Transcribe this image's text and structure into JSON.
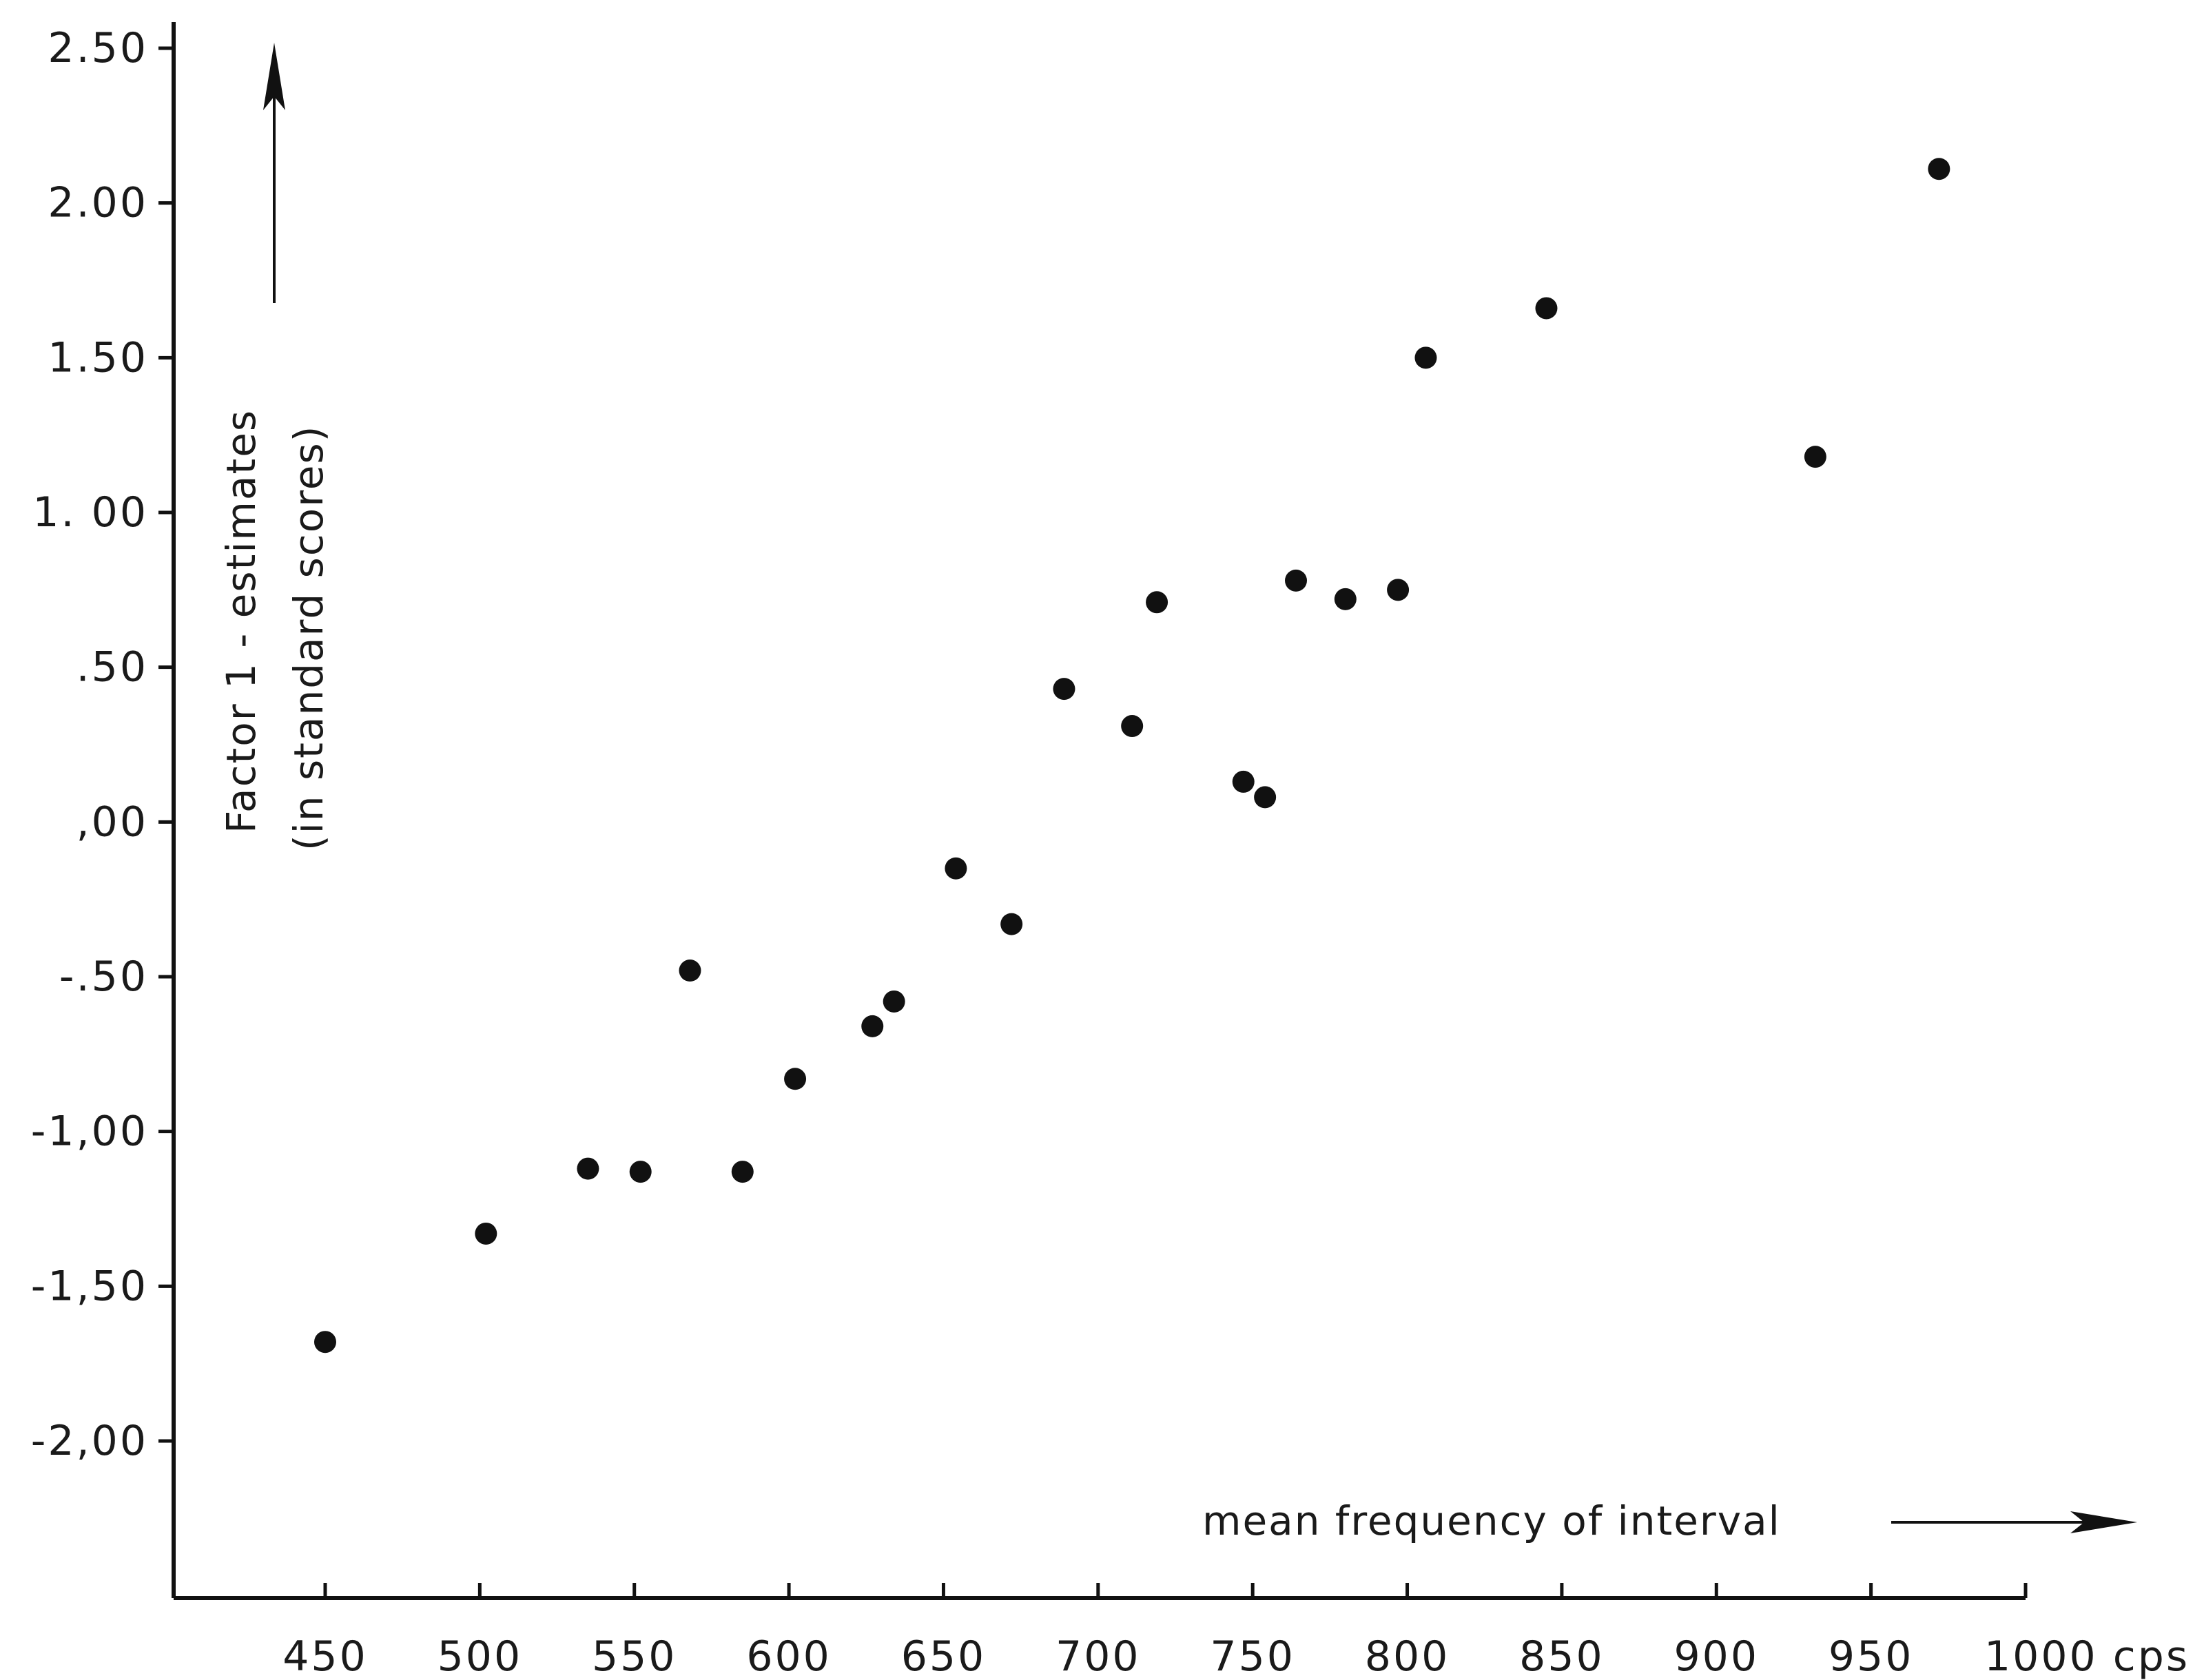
{
  "chart_data": {
    "type": "scatter",
    "title": "",
    "xlabel": "mean frequency of interval",
    "ylabel": "Factor 1 - estimates",
    "ylabel_sub": "(in standard scores)",
    "x_unit": "cps",
    "xlim": [
      400,
      1000
    ],
    "ylim": [
      -2.5,
      2.5
    ],
    "x_ticks": [
      {
        "value": 450,
        "label": "450"
      },
      {
        "value": 500,
        "label": "500"
      },
      {
        "value": 550,
        "label": "550"
      },
      {
        "value": 600,
        "label": "600"
      },
      {
        "value": 650,
        "label": "650"
      },
      {
        "value": 700,
        "label": "700"
      },
      {
        "value": 750,
        "label": "750"
      },
      {
        "value": 800,
        "label": "800"
      },
      {
        "value": 850,
        "label": "850"
      },
      {
        "value": 900,
        "label": "900"
      },
      {
        "value": 950,
        "label": "950"
      },
      {
        "value": 1000,
        "label": "1000 cps"
      }
    ],
    "y_ticks": [
      {
        "value": 2.5,
        "label": "2.50"
      },
      {
        "value": 2.0,
        "label": "2.00"
      },
      {
        "value": 1.5,
        "label": "1.50"
      },
      {
        "value": 1.0,
        "label": "1. 00"
      },
      {
        "value": 0.5,
        "label": ".50"
      },
      {
        "value": 0.0,
        "label": ",00"
      },
      {
        "value": -0.5,
        "label": "-.50"
      },
      {
        "value": -1.0,
        "label": "-1,00"
      },
      {
        "value": -1.5,
        "label": "-1,50"
      },
      {
        "value": -2.0,
        "label": "-2,00"
      }
    ],
    "grid": false,
    "legend": "none",
    "points": [
      {
        "x": 450,
        "y": -1.68
      },
      {
        "x": 502,
        "y": -1.33
      },
      {
        "x": 535,
        "y": -1.12
      },
      {
        "x": 552,
        "y": -1.13
      },
      {
        "x": 568,
        "y": -0.48
      },
      {
        "x": 585,
        "y": -1.13
      },
      {
        "x": 602,
        "y": -0.83
      },
      {
        "x": 627,
        "y": -0.66
      },
      {
        "x": 634,
        "y": -0.58
      },
      {
        "x": 654,
        "y": -0.15
      },
      {
        "x": 672,
        "y": -0.33
      },
      {
        "x": 689,
        "y": 0.43
      },
      {
        "x": 711,
        "y": 0.31
      },
      {
        "x": 719,
        "y": 0.71
      },
      {
        "x": 747,
        "y": 0.13
      },
      {
        "x": 754,
        "y": 0.08
      },
      {
        "x": 764,
        "y": 0.78
      },
      {
        "x": 780,
        "y": 0.72
      },
      {
        "x": 797,
        "y": 0.75
      },
      {
        "x": 806,
        "y": 1.5
      },
      {
        "x": 845,
        "y": 1.66
      },
      {
        "x": 932,
        "y": 1.18
      },
      {
        "x": 972,
        "y": 2.11
      }
    ]
  },
  "colors": {
    "ink": "#111111",
    "background": "#ffffff"
  }
}
